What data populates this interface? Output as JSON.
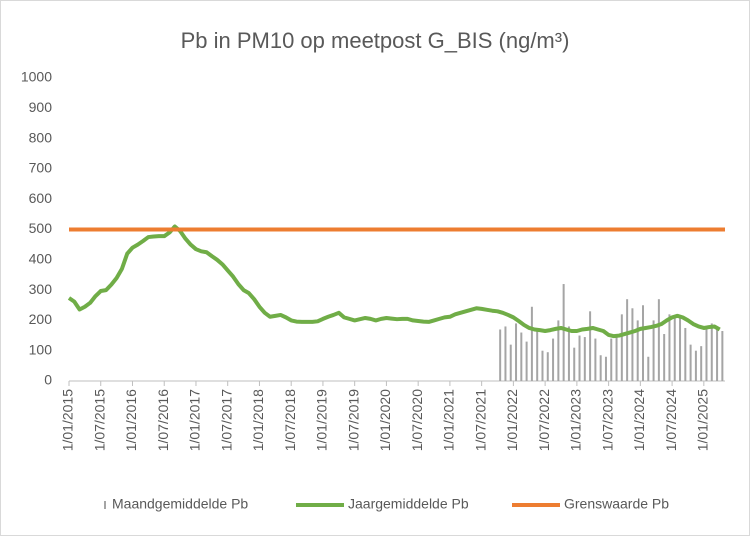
{
  "chart_data": {
    "type": "combo",
    "title": "Pb in PM10 op meetpost G_BIS (ng/m³)",
    "categories": [
      "1/01/2015",
      null,
      null,
      null,
      null,
      null,
      "1/07/2015",
      null,
      null,
      null,
      null,
      null,
      "1/01/2016",
      null,
      null,
      null,
      null,
      null,
      "1/07/2016",
      null,
      null,
      null,
      null,
      null,
      "1/01/2017",
      null,
      null,
      null,
      null,
      null,
      "1/07/2017",
      null,
      null,
      null,
      null,
      null,
      "1/01/2018",
      null,
      null,
      null,
      null,
      null,
      "1/07/2018",
      null,
      null,
      null,
      null,
      null,
      "1/01/2019",
      null,
      null,
      null,
      null,
      null,
      "1/07/2019",
      null,
      null,
      null,
      null,
      null,
      "1/01/2020",
      null,
      null,
      null,
      null,
      null,
      "1/07/2020",
      null,
      null,
      null,
      null,
      null,
      "1/01/2021",
      null,
      null,
      null,
      null,
      null,
      "1/07/2021",
      null,
      null,
      null,
      null,
      null,
      "1/01/2022",
      null,
      null,
      null,
      null,
      null,
      "1/07/2022",
      null,
      null,
      null,
      null,
      null,
      "1/01/2023",
      null,
      null,
      null,
      null,
      null,
      "1/07/2023",
      null,
      null,
      null,
      null,
      null,
      "1/01/2024",
      null,
      null,
      null,
      null,
      null,
      "1/07/2024",
      null,
      null,
      null,
      null,
      null,
      "1/01/2025",
      null,
      null,
      null
    ],
    "series": [
      {
        "name": "Maandgemiddelde Pb",
        "kind": "bar",
        "color": "#a5a5a5",
        "values": [
          null,
          null,
          null,
          null,
          null,
          null,
          null,
          null,
          null,
          null,
          null,
          null,
          null,
          null,
          null,
          null,
          null,
          null,
          null,
          null,
          null,
          null,
          null,
          null,
          null,
          null,
          null,
          null,
          null,
          null,
          null,
          null,
          null,
          null,
          null,
          null,
          null,
          null,
          null,
          null,
          null,
          null,
          null,
          null,
          null,
          null,
          null,
          null,
          null,
          null,
          null,
          null,
          null,
          null,
          null,
          null,
          null,
          null,
          null,
          null,
          null,
          null,
          null,
          null,
          null,
          null,
          null,
          null,
          null,
          null,
          null,
          null,
          null,
          null,
          null,
          null,
          null,
          null,
          null,
          null,
          null,
          170,
          180,
          120,
          190,
          160,
          130,
          245,
          170,
          100,
          95,
          140,
          200,
          320,
          180,
          110,
          150,
          145,
          230,
          140,
          85,
          80,
          140,
          150,
          220,
          270,
          240,
          200,
          250,
          80,
          200,
          270,
          155,
          220,
          210,
          215,
          175,
          120,
          100,
          115,
          180,
          190,
          170,
          165
        ]
      },
      {
        "name": "Jaargemiddelde Pb",
        "kind": "line",
        "color": "#70ad47",
        "values": [
          274,
          262,
          236,
          245,
          258,
          280,
          297,
          300,
          318,
          340,
          370,
          420,
          440,
          450,
          462,
          475,
          477,
          478,
          478,
          490,
          510,
          495,
          470,
          450,
          435,
          428,
          425,
          412,
          400,
          385,
          365,
          345,
          320,
          300,
          290,
          270,
          245,
          225,
          212,
          215,
          218,
          210,
          200,
          196,
          195,
          195,
          195,
          197,
          205,
          212,
          218,
          225,
          210,
          205,
          200,
          204,
          208,
          205,
          200,
          205,
          208,
          206,
          204,
          205,
          205,
          200,
          198,
          196,
          195,
          200,
          205,
          210,
          212,
          220,
          225,
          230,
          235,
          240,
          238,
          235,
          232,
          230,
          225,
          218,
          210,
          198,
          185,
          175,
          170,
          168,
          165,
          168,
          172,
          175,
          170,
          165,
          165,
          170,
          172,
          175,
          170,
          165,
          152,
          148,
          150,
          155,
          160,
          165,
          172,
          175,
          178,
          182,
          188,
          200,
          210,
          215,
          210,
          200,
          188,
          180,
          175,
          178,
          180,
          170
        ]
      },
      {
        "name": "Grenswaarde Pb",
        "kind": "hline",
        "color": "#ed7d31",
        "value": 500
      }
    ],
    "ylim": [
      0,
      1000
    ],
    "yticks": [
      0,
      100,
      200,
      300,
      400,
      500,
      600,
      700,
      800,
      900,
      1000
    ],
    "grid": false,
    "legend": "bottom"
  }
}
